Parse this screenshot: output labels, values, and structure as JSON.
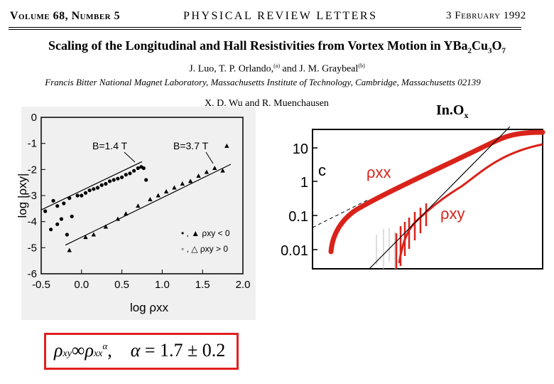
{
  "header": {
    "volume": "Volume 68, Number 5",
    "journal": "PHYSICAL REVIEW LETTERS",
    "date": "3 February 1992"
  },
  "paper": {
    "title_pre": "Scaling of the Longitudinal and Hall Resistivities from Vortex Motion in YBa",
    "title_sub1": "2",
    "title_mid": "Cu",
    "title_sub2": "3",
    "title_end": "O",
    "title_sub3": "7",
    "authors1_a": "J. Luo, T. P. Orlando,",
    "authors1_a_sup": "(a)",
    "authors1_b": " and J. M. Graybeal",
    "authors1_b_sup": "(b)",
    "affiliation": "Francis Bitter National Magnet Laboratory, Massachusetts Institute of Technology, Cambridge, Massachusetts 02139",
    "authors2": "X. D. Wu and R. Muenchausen"
  },
  "material": {
    "label": "In.O",
    "sub": "x"
  },
  "formula": {
    "rho": "ρ",
    "xy": "xy",
    "prop": "∞",
    "xx": "xx",
    "alpha": "α",
    "comma": ",",
    "alpha_eq": "α",
    "eq": " = 1.7 ± 0.2"
  },
  "chart_data": [
    {
      "type": "scatter",
      "title": "",
      "xlabel": "log ρxx",
      "ylabel": "log |ρxy|",
      "xlim": [
        -0.5,
        2.0
      ],
      "ylim": [
        -6,
        0
      ],
      "xticks": [
        "-0.5",
        "0.0",
        "0.5",
        "1.0",
        "1.5",
        "2.0"
      ],
      "yticks": [
        "0",
        "-1",
        "-2",
        "-3",
        "-4",
        "-5",
        "-6"
      ],
      "annotations": [
        "B=1.4 T",
        "B=3.7 T"
      ],
      "legend": [
        {
          "marker": "filled circle / filled triangle",
          "label": "• , ▲  ρxy < 0"
        },
        {
          "marker": "open circle / open triangle",
          "label": "◦ , △  ρxy > 0"
        }
      ],
      "series": [
        {
          "name": "B=1.4 T",
          "marker": "circle",
          "x": [
            -0.35,
            -0.3,
            -0.22,
            -0.15,
            -0.05,
            0.0,
            0.05,
            0.1,
            0.15,
            0.2,
            0.25,
            0.3,
            0.35,
            0.4,
            0.45,
            0.5,
            0.55,
            0.6,
            0.65,
            0.7,
            0.74,
            0.77,
            0.8
          ],
          "y": [
            -3.2,
            -3.4,
            -3.3,
            -3.1,
            -3.0,
            -3.0,
            -2.9,
            -2.8,
            -2.75,
            -2.7,
            -2.6,
            -2.55,
            -2.45,
            -2.4,
            -2.35,
            -2.3,
            -2.2,
            -2.15,
            -2.05,
            -1.95,
            -1.9,
            -1.95,
            -2.4
          ]
        },
        {
          "name": "B=3.7 T",
          "marker": "triangle",
          "x": [
            -0.15,
            0.05,
            0.15,
            0.3,
            0.45,
            0.55,
            0.7,
            0.85,
            0.95,
            1.05,
            1.15,
            1.25,
            1.35,
            1.45,
            1.55,
            1.65,
            1.75,
            1.8
          ],
          "y": [
            -5.1,
            -4.6,
            -4.5,
            -4.2,
            -3.9,
            -3.7,
            -3.4,
            -3.15,
            -3.0,
            -2.85,
            -2.7,
            -2.55,
            -2.45,
            -2.25,
            -2.1,
            -1.95,
            -2.05,
            -1.1
          ]
        },
        {
          "name": "B=1.4 T (scattered)",
          "marker": "circle",
          "x": [
            -0.45,
            -0.38,
            -0.3,
            -0.25,
            -0.18,
            -0.12
          ],
          "y": [
            -3.6,
            -4.3,
            -4.1,
            -3.9,
            -4.5,
            -3.8
          ]
        }
      ]
    },
    {
      "type": "line",
      "title": "",
      "panel": "c",
      "xlabel": "",
      "ylabel": "",
      "yscale": "log",
      "yticks": [
        "10",
        "1",
        "0.1",
        "0.01"
      ],
      "series": [
        {
          "name": "ρxx",
          "color": "#d9231a"
        },
        {
          "name": "ρxy",
          "color": "#d9231a"
        }
      ]
    }
  ]
}
